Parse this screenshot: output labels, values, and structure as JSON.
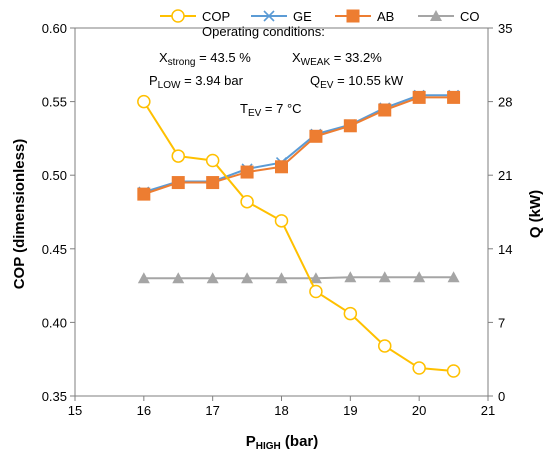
{
  "chart_data": {
    "type": "line",
    "x": [
      16,
      16.5,
      17,
      17.5,
      18,
      18.5,
      19,
      19.5,
      20,
      20.5
    ],
    "xlabel": "P",
    "xlabel_sub": "HIGH",
    "xlabel_unit": " (bar)",
    "xlim": [
      15,
      21
    ],
    "xticks": [
      15,
      16,
      17,
      18,
      19,
      20,
      21
    ],
    "ylabel_left": "COP (dimensionless)",
    "ylim_left": [
      0.35,
      0.6
    ],
    "yticks_left": [
      "0.35",
      "0.40",
      "0.45",
      "0.50",
      "0.55",
      "0.60"
    ],
    "ylabel_right": "Q (kW)",
    "ylim_right": [
      0,
      35
    ],
    "yticks_right": [
      "0",
      "7",
      "14",
      "21",
      "28",
      "35"
    ],
    "grid": false,
    "legend_position": "top",
    "series": [
      {
        "name": "COP",
        "axis": "left",
        "color": "#FFC000",
        "marker": "circle",
        "values": [
          0.55,
          0.513,
          0.51,
          0.482,
          0.469,
          0.421,
          0.406,
          0.384,
          0.369,
          0.367
        ]
      },
      {
        "name": "GE",
        "axis": "right",
        "color": "#5B9BD5",
        "marker": "x",
        "values": [
          19.4,
          20.4,
          20.4,
          21.6,
          22.2,
          24.9,
          25.8,
          27.4,
          28.6,
          28.6
        ]
      },
      {
        "name": "AB",
        "axis": "right",
        "color": "#ED7D31",
        "marker": "square",
        "values": [
          19.2,
          20.3,
          20.3,
          21.3,
          21.8,
          24.7,
          25.7,
          27.2,
          28.4,
          28.4
        ]
      },
      {
        "name": "CO",
        "axis": "right",
        "color": "#A5A5A5",
        "marker": "triangle",
        "values": [
          11.2,
          11.2,
          11.2,
          11.2,
          11.2,
          11.2,
          11.3,
          11.3,
          11.3,
          11.3
        ]
      }
    ],
    "annotations": {
      "title": "Operating conditions:",
      "x_strong": {
        "main": "X",
        "sub": "strong",
        "rest": " = 43.5 %"
      },
      "x_weak": {
        "main": "X",
        "sub": "WEAK",
        "rest": " = 33.2%"
      },
      "p_low": {
        "main": "P",
        "sub": "LOW",
        "rest": " = 3.94 bar"
      },
      "q_ev": {
        "main": "Q",
        "sub": "EV",
        "rest": " = 10.55 kW"
      },
      "t_ev": {
        "main": "T",
        "sub": "EV",
        "rest": " = 7 °C"
      }
    }
  }
}
